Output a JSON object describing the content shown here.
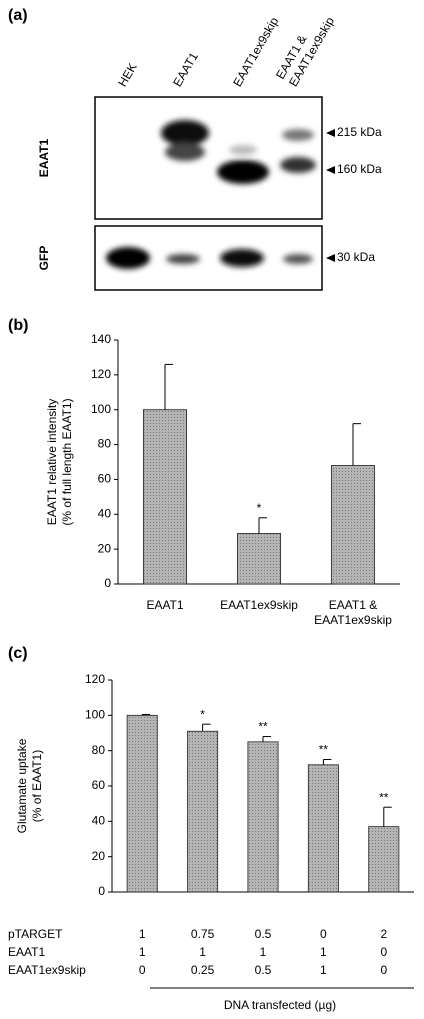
{
  "blot": {
    "panel": "(a)",
    "lanes": [
      "HEK",
      "EAAT1",
      "EAAT1ex9skip",
      "EAAT1 &\nEAAT1ex9skip"
    ],
    "rows": [
      {
        "label": "EAAT1",
        "markers": [
          "215 kDa",
          "160 kDa"
        ]
      },
      {
        "label": "GFP",
        "markers": [
          "30 kDa"
        ]
      }
    ]
  },
  "chart_data": [
    {
      "type": "bar",
      "panel": "(b)",
      "ylabel": "EAAT1 relative intensity\n(% of full length EAAT1)",
      "categories": [
        "EAAT1",
        "EAAT1ex9skip",
        "EAAT1 &\nEAAT1ex9skip"
      ],
      "values": [
        100,
        29,
        68
      ],
      "errors": [
        26,
        9,
        24
      ],
      "annotations": [
        null,
        "*",
        null
      ],
      "color": "#a3a3a3",
      "ylim": [
        0,
        140
      ],
      "yticks": [
        0,
        20,
        40,
        60,
        80,
        100,
        120,
        140
      ]
    },
    {
      "type": "bar",
      "panel": "(c)",
      "ylabel": "Glutamate uptake\n(% of EAAT1)",
      "values": [
        100,
        91,
        85,
        72,
        37
      ],
      "errors": [
        0.5,
        4,
        3,
        3,
        11
      ],
      "annotations": [
        null,
        "*",
        "**",
        "**",
        "**"
      ],
      "color": "#a3a3a3",
      "ylim": [
        0,
        120
      ],
      "yticks": [
        0,
        20,
        40,
        60,
        80,
        100,
        120
      ],
      "table": {
        "rows": [
          {
            "label": "pTARGET",
            "values": [
              1,
              0.75,
              0.5,
              0,
              2
            ]
          },
          {
            "label": "EAAT1",
            "values": [
              1,
              1,
              1,
              1,
              0
            ]
          },
          {
            "label": "EAAT1ex9skip",
            "values": [
              0,
              0.25,
              0.5,
              1,
              0
            ]
          }
        ],
        "xlabel": "DNA transfected (µg)"
      }
    }
  ]
}
